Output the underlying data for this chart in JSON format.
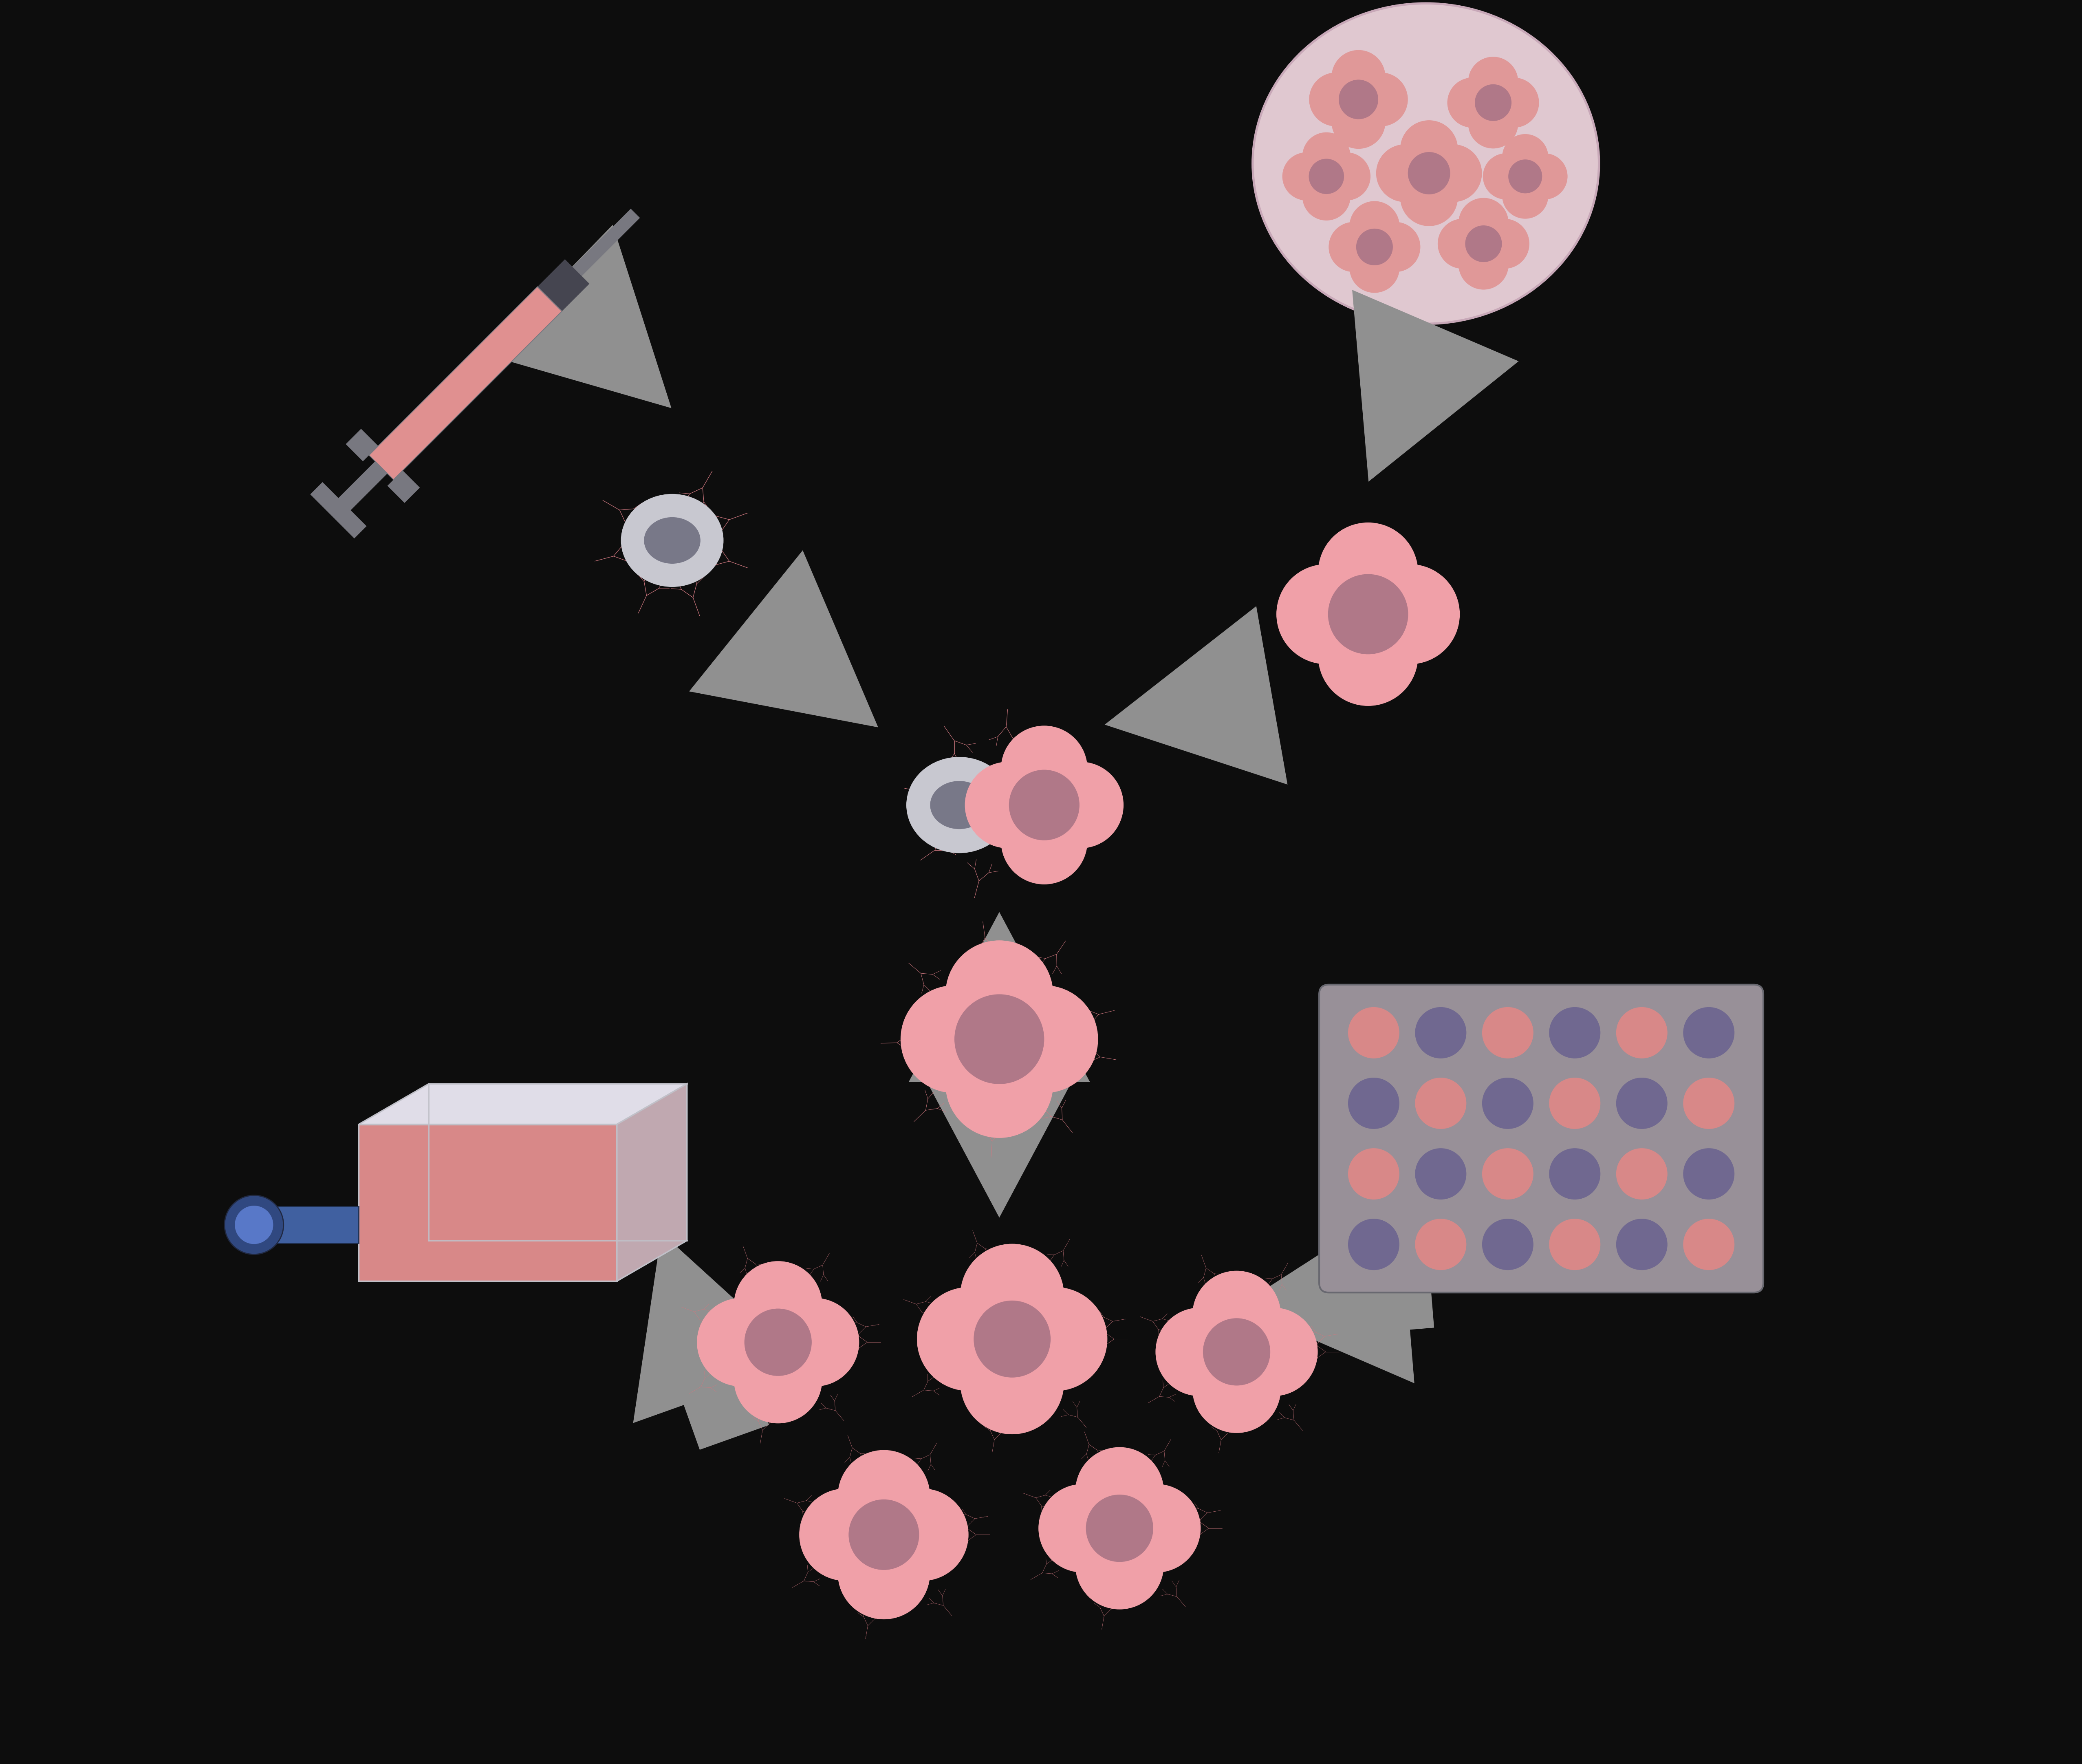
{
  "background_color": "#0d0d0d",
  "pink_cell": "#f0a0a8",
  "pink_nucleus": "#b07888",
  "myeloma_color": "#c8c8d0",
  "myeloma_nucleus": "#787888",
  "arrow_color": "#909090",
  "antibody_color": "#d07880",
  "plate_bg": "#989098",
  "plate_well_pink": "#d88888",
  "plate_well_purple": "#706890",
  "syringe_body": "#e09090",
  "syringe_metal": "#787880",
  "syringe_dark": "#454550",
  "circle_bg": "#e0c8d0",
  "cancer_cell": "#e09898",
  "flask_color": "#d88888",
  "flask_wire": "#c0c0c8",
  "flask_blue": "#4060a0",
  "flask_blue_dark": "#2040608"
}
